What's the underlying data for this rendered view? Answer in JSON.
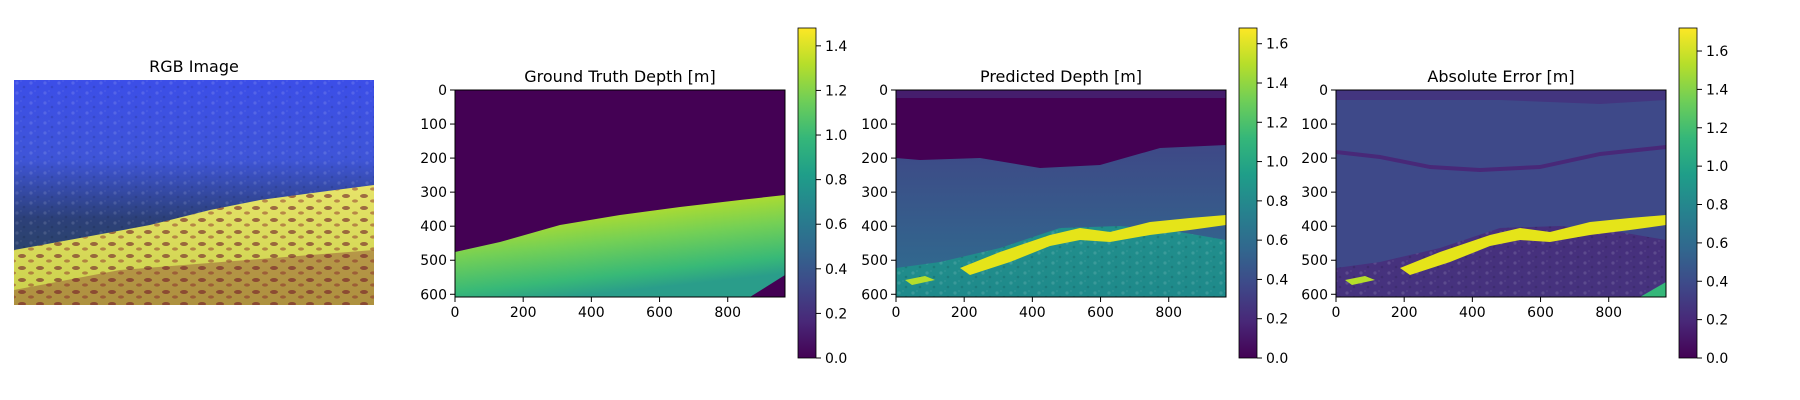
{
  "colormap": "viridis",
  "colormap_stops": [
    "#440154",
    "#482878",
    "#3e4989",
    "#31688e",
    "#26828e",
    "#1f9e89",
    "#35b779",
    "#6ece58",
    "#b5de2b",
    "#fde725"
  ],
  "chart_data": [
    {
      "type": "image",
      "title": "RGB Image",
      "colors": {
        "water_top": "#3a4fe6",
        "water_mid": "#27407a",
        "seabed": "#d9df5a",
        "seabed_dark": "#7a1c2a"
      }
    },
    {
      "type": "heatmap",
      "title": "Ground Truth Depth [m]",
      "x_ticks": [
        "0",
        "200",
        "400",
        "600",
        "800"
      ],
      "y_ticks": [
        "0",
        "100",
        "200",
        "300",
        "400",
        "500",
        "600"
      ],
      "xlim": [
        0,
        968
      ],
      "ylim": [
        608,
        0
      ],
      "colorbar": {
        "min": 0,
        "max": 1.48,
        "ticks": [
          "0.0",
          "0.2",
          "0.4",
          "0.6",
          "0.8",
          "1.0",
          "1.2",
          "1.4"
        ]
      }
    },
    {
      "type": "heatmap",
      "title": "Predicted Depth [m]",
      "x_ticks": [
        "0",
        "200",
        "400",
        "600",
        "800"
      ],
      "y_ticks": [
        "0",
        "100",
        "200",
        "300",
        "400",
        "500",
        "600"
      ],
      "xlim": [
        0,
        968
      ],
      "ylim": [
        608,
        0
      ],
      "colorbar": {
        "min": 0,
        "max": 1.68,
        "ticks": [
          "0.0",
          "0.2",
          "0.4",
          "0.6",
          "0.8",
          "1.0",
          "1.2",
          "1.4",
          "1.6"
        ]
      }
    },
    {
      "type": "heatmap",
      "title": "Absolute Error [m]",
      "x_ticks": [
        "0",
        "200",
        "400",
        "600",
        "800"
      ],
      "y_ticks": [
        "0",
        "100",
        "200",
        "300",
        "400",
        "500",
        "600"
      ],
      "xlim": [
        0,
        968
      ],
      "ylim": [
        608,
        0
      ],
      "colorbar": {
        "min": 0,
        "max": 1.72,
        "ticks": [
          "0.0",
          "0.2",
          "0.4",
          "0.6",
          "0.8",
          "1.0",
          "1.2",
          "1.4",
          "1.6"
        ]
      }
    }
  ]
}
